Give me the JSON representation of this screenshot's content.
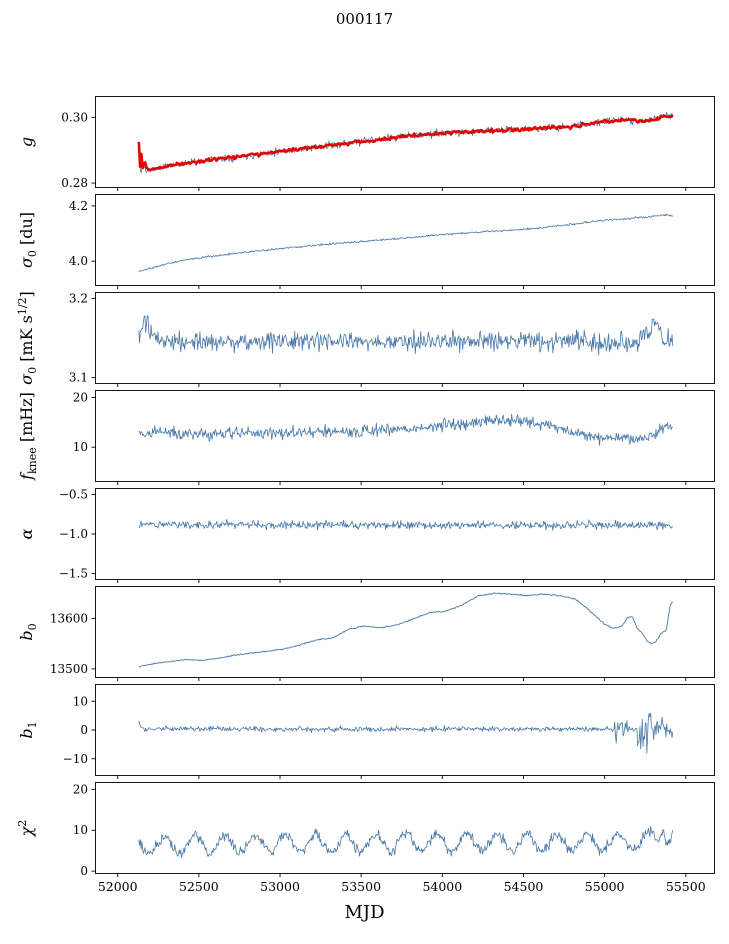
{
  "chart_data": {
    "type": "line",
    "title": "000117",
    "xlabel": "MJD",
    "xlim": [
      51860,
      55680
    ],
    "x_data_range": [
      52130,
      55420
    ],
    "xticks": [
      52000,
      52500,
      53000,
      53500,
      54000,
      54500,
      55000,
      55500
    ],
    "xtick_labels": [
      "52000",
      "52500",
      "53000",
      "53500",
      "54000",
      "54500",
      "55000",
      "55500"
    ],
    "axes_color": "#000000",
    "line_color": "#4878a8",
    "accent_color": "#e10600",
    "panels": [
      {
        "name": "g",
        "ylabel_parts": [
          {
            "t": "g",
            "i": true
          }
        ],
        "ylim": [
          0.2785,
          0.3065
        ],
        "yticks": [
          0.28,
          0.3
        ],
        "ytick_labels": [
          "0.28",
          "0.30"
        ],
        "series": [
          {
            "name": "g-raw",
            "color": "#4878a8",
            "width": 0.8,
            "n": 700,
            "seed": 11,
            "noise": 0.0011,
            "trend": [
              [
                52130,
                0.292
              ],
              [
                52142,
                0.2822
              ],
              [
                52155,
                0.2862
              ],
              [
                52172,
                0.2836
              ],
              [
                52250,
                0.2846
              ],
              [
                52400,
                0.286
              ],
              [
                52600,
                0.2873
              ],
              [
                52800,
                0.2884
              ],
              [
                53000,
                0.2897
              ],
              [
                53200,
                0.2908
              ],
              [
                53400,
                0.292
              ],
              [
                53600,
                0.2932
              ],
              [
                53800,
                0.2944
              ],
              [
                54000,
                0.2952
              ],
              [
                54200,
                0.2957
              ],
              [
                54400,
                0.2961
              ],
              [
                54600,
                0.2967
              ],
              [
                54800,
                0.2972
              ],
              [
                55000,
                0.2988
              ],
              [
                55150,
                0.2993
              ],
              [
                55250,
                0.2988
              ],
              [
                55350,
                0.3001
              ],
              [
                55420,
                0.3004
              ]
            ]
          },
          {
            "name": "g-binned",
            "color": "#e10600",
            "width": 2.6,
            "n": 420,
            "seed": 12,
            "noise": 0.0005,
            "trend": [
              [
                52130,
                0.2928
              ],
              [
                52138,
                0.285
              ],
              [
                52146,
                0.2888
              ],
              [
                52154,
                0.2842
              ],
              [
                52165,
                0.2868
              ],
              [
                52180,
                0.2842
              ],
              [
                52250,
                0.2847
              ],
              [
                52400,
                0.286
              ],
              [
                52600,
                0.2873
              ],
              [
                52800,
                0.2884
              ],
              [
                53000,
                0.2897
              ],
              [
                53200,
                0.2908
              ],
              [
                53400,
                0.292
              ],
              [
                53600,
                0.2932
              ],
              [
                53800,
                0.2944
              ],
              [
                54000,
                0.2952
              ],
              [
                54200,
                0.2957
              ],
              [
                54400,
                0.2961
              ],
              [
                54600,
                0.2967
              ],
              [
                54800,
                0.2972
              ],
              [
                55000,
                0.2988
              ],
              [
                55150,
                0.2993
              ],
              [
                55250,
                0.2988
              ],
              [
                55350,
                0.3001
              ],
              [
                55420,
                0.3004
              ]
            ]
          }
        ]
      },
      {
        "name": "sigma0-du",
        "ylabel_parts": [
          {
            "t": "σ",
            "i": true
          },
          {
            "t": "0",
            "sub": true
          },
          {
            "t": " [du]"
          }
        ],
        "ylim": [
          3.91,
          4.243
        ],
        "yticks": [
          4.0,
          4.2
        ],
        "ytick_labels": [
          "4.0",
          "4.2"
        ],
        "series": [
          {
            "name": "sigma0-du",
            "color": "#4878a8",
            "width": 0.8,
            "n": 700,
            "seed": 21,
            "noise": 0.0035,
            "trend": [
              [
                52130,
                3.963
              ],
              [
                52200,
                3.974
              ],
              [
                52300,
                3.99
              ],
              [
                52400,
                4.002
              ],
              [
                52500,
                4.012
              ],
              [
                52650,
                4.023
              ],
              [
                52800,
                4.033
              ],
              [
                52950,
                4.042
              ],
              [
                53100,
                4.051
              ],
              [
                53250,
                4.059
              ],
              [
                53400,
                4.066
              ],
              [
                53550,
                4.073
              ],
              [
                53700,
                4.08
              ],
              [
                53850,
                4.088
              ],
              [
                54000,
                4.096
              ],
              [
                54150,
                4.102
              ],
              [
                54300,
                4.108
              ],
              [
                54450,
                4.113
              ],
              [
                54600,
                4.12
              ],
              [
                54750,
                4.13
              ],
              [
                54900,
                4.141
              ],
              [
                55000,
                4.148
              ],
              [
                55100,
                4.152
              ],
              [
                55200,
                4.157
              ],
              [
                55300,
                4.162
              ],
              [
                55380,
                4.168
              ],
              [
                55420,
                4.164
              ]
            ]
          }
        ]
      },
      {
        "name": "sigma0-mk",
        "ylabel_parts": [
          {
            "t": "σ",
            "i": true
          },
          {
            "t": "0",
            "sub": true
          },
          {
            "t": " [mK s"
          },
          {
            "t": "1/2",
            "sup": true
          },
          {
            "t": "]"
          }
        ],
        "ylim": [
          3.092,
          3.208
        ],
        "yticks": [
          3.1,
          3.2
        ],
        "ytick_labels": [
          "3.1",
          "3.2"
        ],
        "series": [
          {
            "name": "sigma0-mk",
            "color": "#4878a8",
            "width": 0.8,
            "n": 700,
            "seed": 31,
            "noise": 0.0125,
            "trend": [
              [
                52130,
                3.15
              ],
              [
                52175,
                3.172
              ],
              [
                52215,
                3.148
              ],
              [
                52600,
                3.146
              ],
              [
                53500,
                3.145
              ],
              [
                54500,
                3.146
              ],
              [
                55200,
                3.143
              ],
              [
                55320,
                3.172
              ],
              [
                55360,
                3.152
              ],
              [
                55420,
                3.15
              ]
            ]
          }
        ]
      },
      {
        "name": "fknee",
        "ylabel_parts": [
          {
            "t": "f",
            "i": true
          },
          {
            "t": "knee",
            "sub": true
          },
          {
            "t": " [mHz]"
          }
        ],
        "ylim": [
          3.0,
          21.5
        ],
        "yticks": [
          10,
          20
        ],
        "ytick_labels": [
          "10",
          "20"
        ],
        "series": [
          {
            "name": "fknee",
            "color": "#4878a8",
            "width": 0.8,
            "n": 700,
            "seed": 41,
            "noise": 1.25,
            "trend": [
              [
                52130,
                12.6
              ],
              [
                52250,
                13.2
              ],
              [
                52400,
                12.6
              ],
              [
                52700,
                12.7
              ],
              [
                53000,
                12.9
              ],
              [
                53300,
                13.0
              ],
              [
                53600,
                13.3
              ],
              [
                53850,
                13.8
              ],
              [
                54050,
                14.6
              ],
              [
                54250,
                15.2
              ],
              [
                54450,
                15.4
              ],
              [
                54600,
                14.8
              ],
              [
                54750,
                13.5
              ],
              [
                54900,
                12.3
              ],
              [
                55050,
                11.7
              ],
              [
                55200,
                11.9
              ],
              [
                55300,
                12.4
              ],
              [
                55370,
                14.2
              ],
              [
                55420,
                14.0
              ]
            ]
          }
        ]
      },
      {
        "name": "alpha",
        "ylabel_parts": [
          {
            "t": "α",
            "i": true
          }
        ],
        "ylim": [
          -1.581,
          -0.419
        ],
        "yticks": [
          -0.5,
          -1.0,
          -1.5
        ],
        "ytick_labels": [
          "−0.5",
          "−1.0",
          "−1.5"
        ],
        "series": [
          {
            "name": "alpha",
            "color": "#4878a8",
            "width": 0.8,
            "n": 700,
            "seed": 51,
            "noise": 0.05,
            "trend": [
              [
                52130,
                -0.875
              ],
              [
                53000,
                -0.885
              ],
              [
                54000,
                -0.89
              ],
              [
                55420,
                -0.89
              ]
            ]
          }
        ]
      },
      {
        "name": "b0",
        "ylabel_parts": [
          {
            "t": "b",
            "i": true
          },
          {
            "t": "0",
            "sub": true
          }
        ],
        "ylim": [
          13482,
          13664
        ],
        "yticks": [
          13500,
          13600
        ],
        "ytick_labels": [
          "13500",
          "13600"
        ],
        "series": [
          {
            "name": "b0",
            "color": "#4878a8",
            "width": 0.9,
            "n": 600,
            "seed": 61,
            "noise": 1.2,
            "trend": [
              [
                52130,
                13504
              ],
              [
                52200,
                13509
              ],
              [
                52300,
                13514
              ],
              [
                52420,
                13518
              ],
              [
                52520,
                13517
              ],
              [
                52620,
                13521
              ],
              [
                52720,
                13527
              ],
              [
                52820,
                13531
              ],
              [
                52920,
                13535
              ],
              [
                53020,
                13539
              ],
              [
                53120,
                13547
              ],
              [
                53220,
                13557
              ],
              [
                53320,
                13561
              ],
              [
                53420,
                13578
              ],
              [
                53520,
                13585
              ],
              [
                53620,
                13581
              ],
              [
                53720,
                13587
              ],
              [
                53820,
                13599
              ],
              [
                53920,
                13611
              ],
              [
                54020,
                13614
              ],
              [
                54120,
                13626
              ],
              [
                54220,
                13644
              ],
              [
                54320,
                13650
              ],
              [
                54420,
                13648
              ],
              [
                54520,
                13645
              ],
              [
                54620,
                13648
              ],
              [
                54720,
                13645
              ],
              [
                54820,
                13638
              ],
              [
                54920,
                13612
              ],
              [
                55000,
                13588
              ],
              [
                55060,
                13580
              ],
              [
                55110,
                13586
              ],
              [
                55140,
                13601
              ],
              [
                55170,
                13604
              ],
              [
                55200,
                13581
              ],
              [
                55230,
                13571
              ],
              [
                55260,
                13556
              ],
              [
                55290,
                13549
              ],
              [
                55320,
                13556
              ],
              [
                55350,
                13571
              ],
              [
                55380,
                13576
              ],
              [
                55405,
                13628
              ],
              [
                55420,
                13632
              ]
            ]
          }
        ]
      },
      {
        "name": "b1",
        "ylabel_parts": [
          {
            "t": "b",
            "i": true
          },
          {
            "t": "1",
            "sub": true
          }
        ],
        "ylim": [
          -16,
          16
        ],
        "yticks": [
          10,
          0,
          -10
        ],
        "ytick_labels": [
          "10",
          "0",
          "−10"
        ],
        "series": [
          {
            "name": "b1",
            "color": "#4878a8",
            "width": 0.8,
            "n": 700,
            "seed": 71,
            "noise": 0.85,
            "trend": [
              [
                52130,
                3.2
              ],
              [
                52145,
                0.4
              ],
              [
                53000,
                0.3
              ],
              [
                54000,
                0.4
              ],
              [
                55000,
                0.3
              ],
              [
                55420,
                0.2
              ]
            ],
            "noise_zones": [
              [
                55060,
                55150,
                7.5
              ],
              [
                55200,
                55290,
                7.0
              ],
              [
                55300,
                55420,
                4.5
              ]
            ]
          }
        ]
      },
      {
        "name": "chi2",
        "ylabel_parts": [
          {
            "t": "χ",
            "i": true
          },
          {
            "t": "2",
            "sup": true
          }
        ],
        "ylim": [
          -0.7,
          21.8
        ],
        "yticks": [
          0,
          10,
          20
        ],
        "ytick_labels": [
          "0",
          "10",
          "20"
        ],
        "series": [
          {
            "name": "chi2",
            "color": "#4878a8",
            "width": 0.8,
            "n": 700,
            "seed": 81,
            "noise": 1.3,
            "trend": [
              [
                52130,
                6.3
              ],
              [
                53000,
                6.8
              ],
              [
                54000,
                7.0
              ],
              [
                55250,
                7.0
              ],
              [
                55330,
                8.5
              ],
              [
                55355,
                12.5
              ],
              [
                55380,
                8.0
              ],
              [
                55420,
                7.5
              ]
            ],
            "osc": {
              "amp": 2.1,
              "period": 186,
              "phase": 0.8
            }
          }
        ]
      }
    ]
  }
}
